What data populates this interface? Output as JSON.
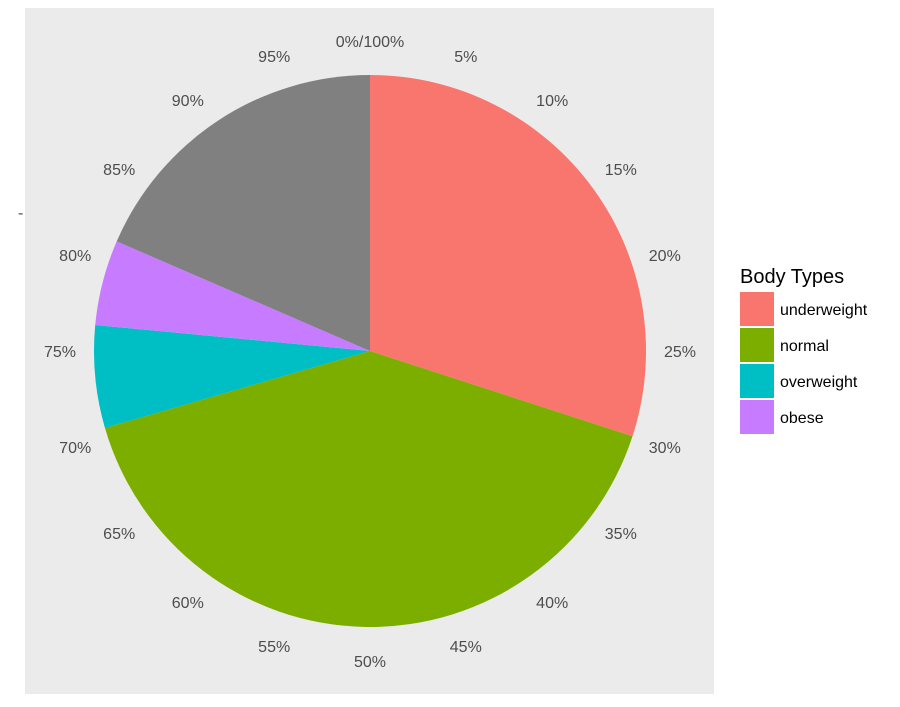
{
  "chart_data": {
    "type": "pie",
    "title": "",
    "ylabel": "-",
    "slices": [
      {
        "label": "underweight",
        "value": 30.0,
        "color": "#F8766D",
        "in_legend": true
      },
      {
        "label": "normal",
        "value": 40.5,
        "color": "#7CAE00",
        "in_legend": true
      },
      {
        "label": "overweight",
        "value": 6.0,
        "color": "#00BFC4",
        "in_legend": true
      },
      {
        "label": "obese",
        "value": 5.0,
        "color": "#C77CFF",
        "in_legend": true
      },
      {
        "label": "",
        "value": 18.5,
        "color": "#808080",
        "in_legend": false
      }
    ],
    "theta_ticks": [
      "0%/100%",
      "5%",
      "10%",
      "15%",
      "20%",
      "25%",
      "30%",
      "35%",
      "40%",
      "45%",
      "50%",
      "55%",
      "60%",
      "65%",
      "70%",
      "75%",
      "80%",
      "85%",
      "90%",
      "95%"
    ],
    "legend": {
      "title": "Body Types",
      "position": "right"
    },
    "panel_background": "#EBEBEB"
  }
}
